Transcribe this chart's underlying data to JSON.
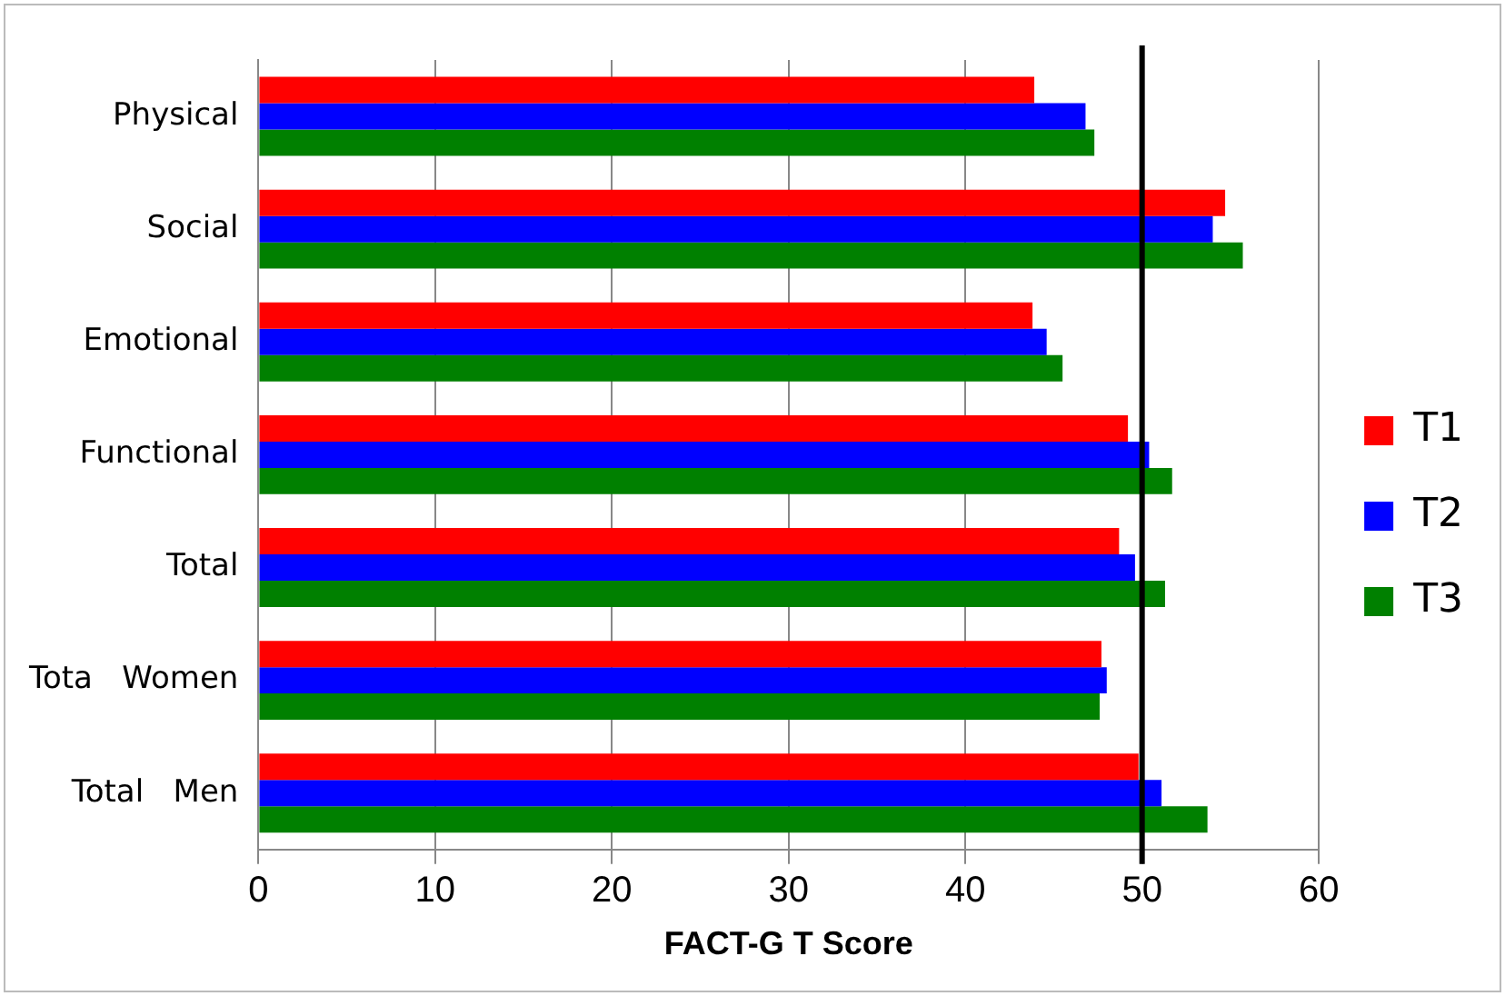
{
  "chart_data": {
    "type": "bar",
    "orientation": "horizontal",
    "xlabel": "FACT-G T Score",
    "categories": [
      "Physical",
      "Social",
      "Emotional",
      "Functional",
      "Total",
      "Tota   Women",
      "Total   Men"
    ],
    "series": [
      {
        "name": "T1",
        "color": "#ff0000",
        "values": [
          43.9,
          54.7,
          43.8,
          49.2,
          48.7,
          47.7,
          49.8
        ]
      },
      {
        "name": "T2",
        "color": "#0000ff",
        "values": [
          46.8,
          54.0,
          44.6,
          50.4,
          49.6,
          48.0,
          51.1
        ]
      },
      {
        "name": "T3",
        "color": "#008000",
        "values": [
          47.3,
          55.7,
          45.5,
          51.7,
          51.3,
          47.6,
          53.7
        ]
      }
    ],
    "xlim": [
      0,
      60
    ],
    "xticks": [
      0,
      10,
      20,
      30,
      40,
      50,
      60
    ],
    "grid": "x",
    "legend": "right",
    "ref_lines": [
      {
        "axis": "x",
        "value": 50,
        "color": "#000000"
      }
    ]
  }
}
